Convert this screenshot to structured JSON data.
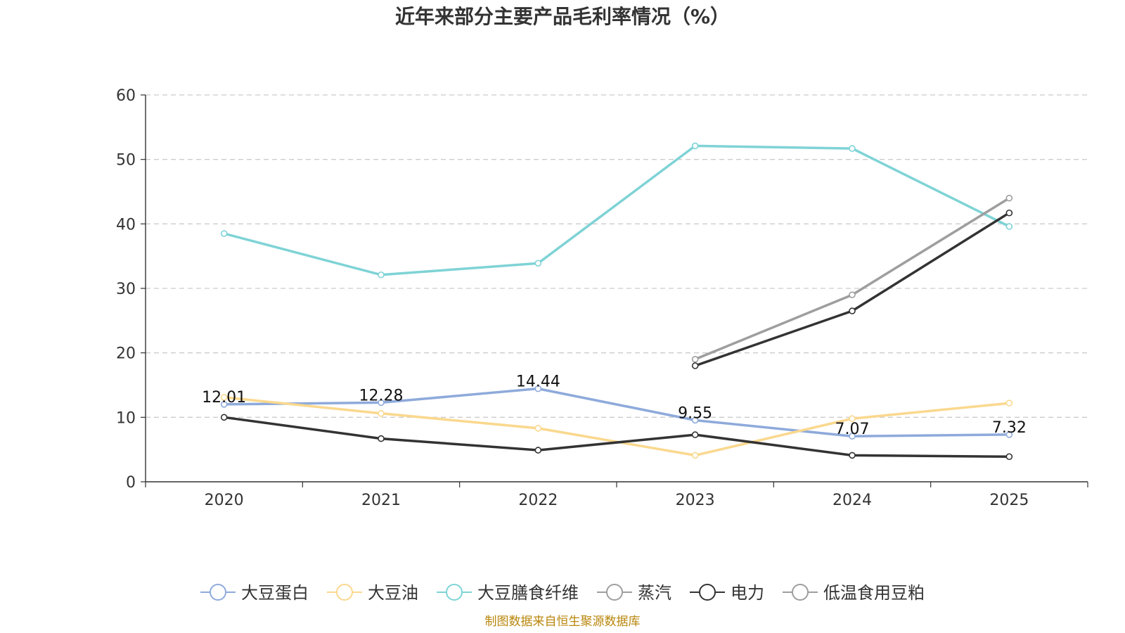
{
  "chart_data": {
    "type": "line",
    "title": "近年来部分主要产品毛利率情况（%）",
    "xlabel": "",
    "ylabel": "",
    "categories": [
      "2020",
      "2021",
      "2022",
      "2023",
      "2024",
      "2025"
    ],
    "ylim": [
      0,
      60
    ],
    "yticks": [
      0,
      10,
      20,
      30,
      40,
      50,
      60
    ],
    "grid": true,
    "legend_position": "bottom",
    "series": [
      {
        "name": "大豆蛋白",
        "color": "#8eaadb",
        "values": [
          12.01,
          12.28,
          14.44,
          9.55,
          7.07,
          7.32
        ],
        "labels": [
          "12.01",
          "12.28",
          "14.44",
          "9.55",
          "7.07",
          "7.32"
        ]
      },
      {
        "name": "大豆油",
        "color": "#fad88e",
        "values": [
          13.1,
          10.6,
          8.3,
          4.1,
          9.8,
          12.2
        ]
      },
      {
        "name": "大豆膳食纤维",
        "color": "#7fd3d6",
        "values": [
          38.5,
          32.1,
          33.9,
          52.1,
          51.7,
          39.6
        ]
      },
      {
        "name": "蒸汽",
        "color": "#9e9e9e",
        "values": [
          null,
          null,
          null,
          19.0,
          29.0,
          44.0
        ]
      },
      {
        "name": "电力",
        "color": "#333333",
        "values": [
          null,
          null,
          null,
          18.0,
          26.5,
          41.7
        ]
      },
      {
        "name": "低温食用豆粕",
        "color": "#333333",
        "legend_color": "#9e9e9e",
        "values": [
          10.0,
          6.7,
          4.9,
          7.3,
          4.1,
          3.9
        ]
      }
    ],
    "source": "制图数据来自恒生聚源数据库"
  }
}
